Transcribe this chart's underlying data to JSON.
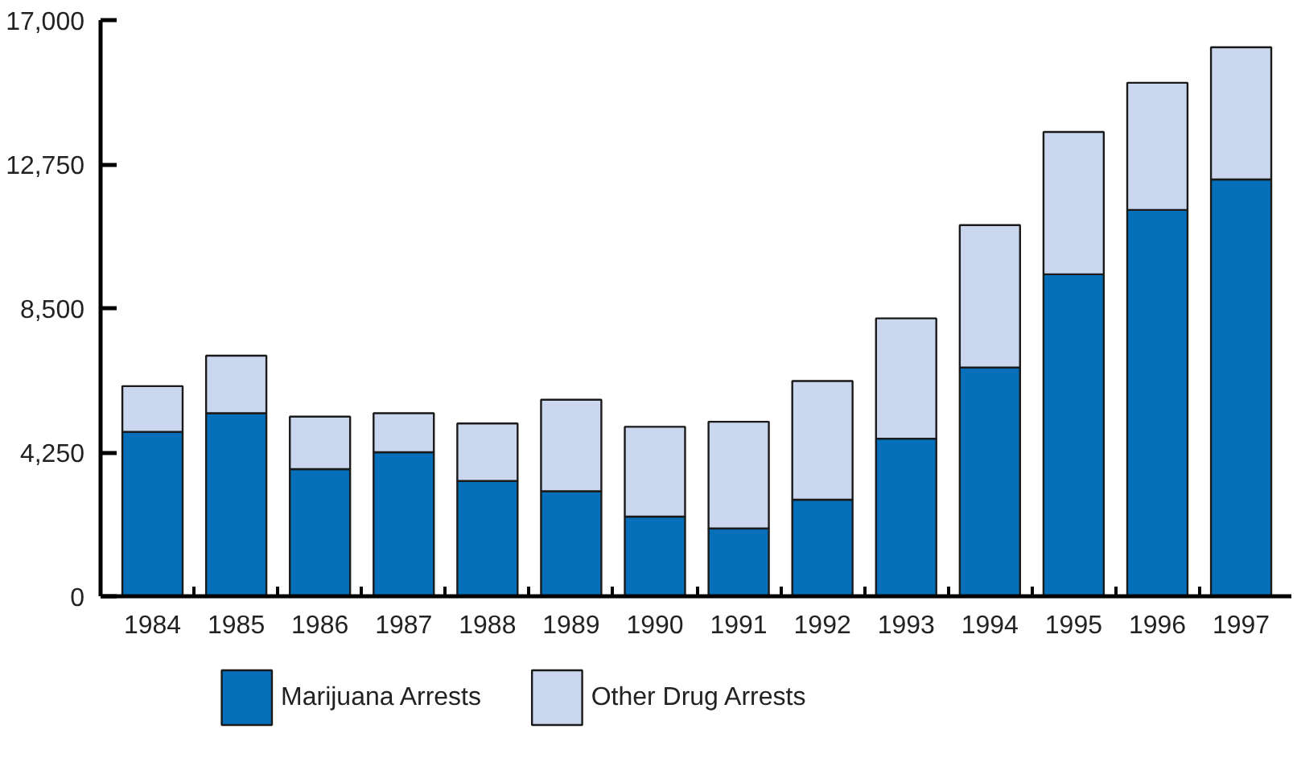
{
  "chart_data": {
    "type": "bar",
    "stacked": true,
    "categories": [
      "1984",
      "1985",
      "1986",
      "1987",
      "1988",
      "1989",
      "1990",
      "1991",
      "1992",
      "1993",
      "1994",
      "1995",
      "1996",
      "1997"
    ],
    "series": [
      {
        "name": "Marijuana Arrests",
        "color": "#0570b9",
        "values": [
          4850,
          5400,
          3750,
          4250,
          3400,
          3100,
          2350,
          2000,
          2850,
          4650,
          6750,
          9500,
          11400,
          12300
        ]
      },
      {
        "name": "Other Drug Arrests",
        "color": "#cbd7ee",
        "values": [
          1350,
          1700,
          1550,
          1150,
          1700,
          2700,
          2650,
          3150,
          3500,
          3550,
          4200,
          4200,
          3750,
          3900
        ]
      }
    ],
    "ylim": [
      0,
      17000
    ],
    "yticks": [
      0,
      {
        "value": 4250,
        "label": "4,250"
      },
      {
        "value": 8500,
        "label": "8,500"
      },
      {
        "value": 12750,
        "label": "12,750"
      },
      {
        "value": 17000,
        "label": "17,000"
      }
    ],
    "grid": false,
    "legend": "bottom"
  }
}
